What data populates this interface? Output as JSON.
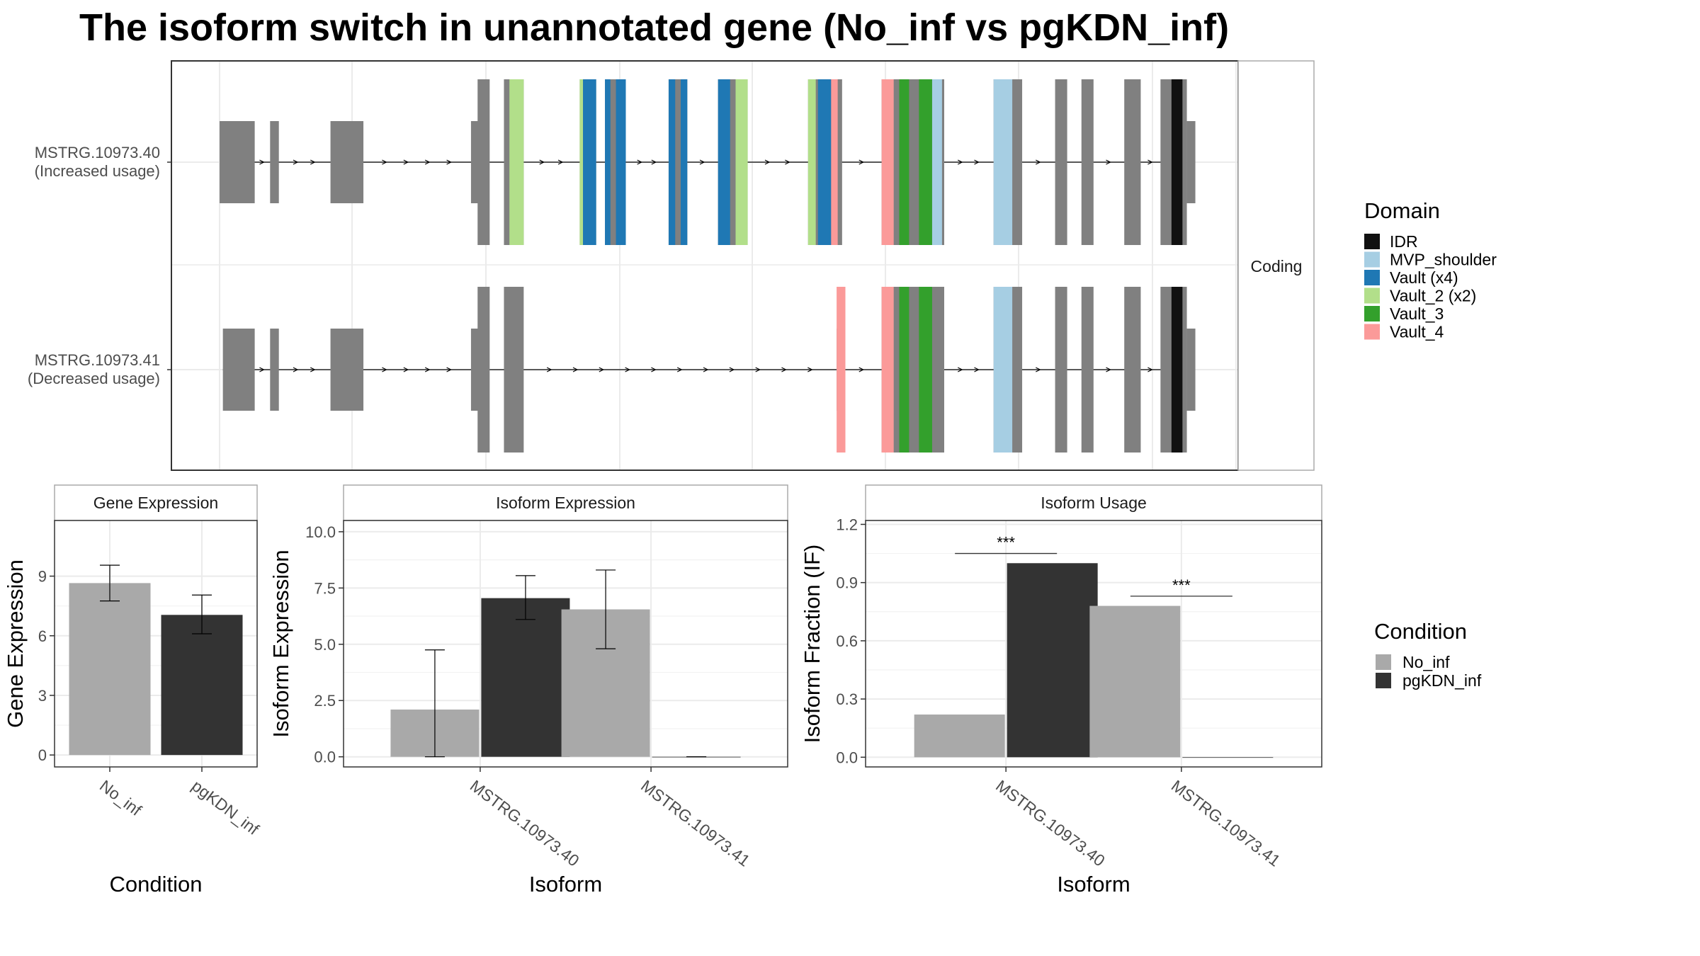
{
  "title": "The isoform switch in unannotated gene (No_inf vs pgKDN_inf)",
  "colors": {
    "No_inf": "#A9A9A9",
    "pgKDN_inf": "#333333",
    "exon": "#808080",
    "IDR": "#111111",
    "MVP_shoulder": "#A6CEE3",
    "Vault (x4)": "#1F78B4",
    "Vault_2 (x2)": "#B2DF8A",
    "Vault_3": "#33A02C",
    "Vault_4": "#FB9A99"
  },
  "chart_data": [
    {
      "type": "gene-structure",
      "facet_label": "Coding",
      "transcripts": [
        {
          "label": "MSTRG.10973.40\n(Increased usage)",
          "utr_exons": [
            [
              200,
              232
            ],
            [
              246,
              254
            ],
            [
              301,
              331
            ],
            [
              429,
              436
            ]
          ],
          "cds_exons": [
            [
              435,
              446
            ],
            [
              459,
              477
            ],
            [
              528,
              543
            ],
            [
              551,
              570
            ],
            [
              609,
              626
            ],
            [
              654,
              681
            ],
            [
              736,
              767
            ],
            [
              803,
              860
            ],
            [
              905,
              931
            ],
            [
              961,
              972
            ],
            [
              985,
              996
            ],
            [
              1024,
              1039
            ],
            [
              1057,
              1081
            ]
          ],
          "domains": [
            {
              "name": "Vault_2 (x2)",
              "range": [
                464,
                477
              ]
            },
            {
              "name": "Vault_2 (x2)",
              "range": [
                528,
                531
              ]
            },
            {
              "name": "Vault (x4)",
              "range": [
                531,
                543
              ]
            },
            {
              "name": "Vault (x4)",
              "range": [
                551,
                556
              ]
            },
            {
              "name": "Vault (x4)",
              "range": [
                561,
                570
              ]
            },
            {
              "name": "Vault (x4)",
              "range": [
                609,
                615
              ]
            },
            {
              "name": "Vault (x4)",
              "range": [
                620,
                626
              ]
            },
            {
              "name": "Vault (x4)",
              "range": [
                654,
                665
              ]
            },
            {
              "name": "Vault_2 (x2)",
              "range": [
                670,
                681
              ]
            },
            {
              "name": "Vault_2 (x2)",
              "range": [
                736,
                743
              ]
            },
            {
              "name": "Vault (x4)",
              "range": [
                745,
                757
              ]
            },
            {
              "name": "Vault_4",
              "range": [
                757,
                763
              ]
            },
            {
              "name": "Vault_4",
              "range": [
                803,
                814
              ]
            },
            {
              "name": "Vault_3",
              "range": [
                819,
                828
              ]
            },
            {
              "name": "Vault_3",
              "range": [
                837,
                849
              ]
            },
            {
              "name": "MVP_shoulder",
              "range": [
                849,
                858
              ]
            },
            {
              "name": "MVP_shoulder",
              "range": [
                905,
                922
              ]
            },
            {
              "name": "IDR",
              "range": [
                1067,
                1077
              ]
            }
          ]
        },
        {
          "label": "MSTRG.10973.41\n(Decreased usage)",
          "utr_exons": [
            [
              203,
              232
            ],
            [
              246,
              254
            ],
            [
              301,
              331
            ],
            [
              429,
              436
            ],
            [
              762,
              767
            ]
          ],
          "cds_exons": [
            [
              435,
              446
            ],
            [
              459,
              477
            ],
            [
              803,
              860
            ],
            [
              905,
              931
            ],
            [
              961,
              972
            ],
            [
              985,
              996
            ],
            [
              1024,
              1039
            ],
            [
              1057,
              1081
            ]
          ],
          "domains": [
            {
              "name": "Vault_4",
              "range": [
                762,
                770
              ]
            },
            {
              "name": "Vault_4",
              "range": [
                803,
                814
              ]
            },
            {
              "name": "Vault_3",
              "range": [
                819,
                828
              ]
            },
            {
              "name": "Vault_3",
              "range": [
                837,
                849
              ]
            },
            {
              "name": "MVP_shoulder",
              "range": [
                905,
                922
              ]
            },
            {
              "name": "IDR",
              "range": [
                1067,
                1077
              ]
            }
          ]
        }
      ],
      "legend": {
        "title": "Domain",
        "items": [
          "IDR",
          "MVP_shoulder",
          "Vault (x4)",
          "Vault_2 (x2)",
          "Vault_3",
          "Vault_4"
        ]
      }
    },
    {
      "type": "bar",
      "title": "Gene Expression",
      "xlabel": "Condition",
      "ylabel": "Gene Expression",
      "categories": [
        "No_inf",
        "pgKDN_inf"
      ],
      "values": [
        8.65,
        7.05
      ],
      "errors": [
        [
          7.75,
          9.55
        ],
        [
          6.1,
          8.05
        ]
      ],
      "ylim": [
        -0.6,
        11.8
      ],
      "yticks": [
        0,
        3,
        6,
        9
      ]
    },
    {
      "type": "bar",
      "title": "Isoform Expression",
      "xlabel": "Isoform",
      "ylabel": "Isoform Expression",
      "categories": [
        "MSTRG.10973.40",
        "MSTRG.10973.41"
      ],
      "series": [
        {
          "name": "No_inf",
          "values": [
            2.1,
            6.55
          ],
          "errors": [
            [
              0.0,
              4.75
            ],
            [
              4.8,
              8.3
            ]
          ]
        },
        {
          "name": "pgKDN_inf",
          "values": [
            7.05,
            0.0
          ],
          "errors": [
            [
              6.1,
              8.05
            ],
            [
              0.0,
              0.0
            ]
          ]
        }
      ],
      "ylim": [
        -0.45,
        10.5
      ],
      "yticks": [
        "0.0",
        "2.5",
        "5.0",
        "7.5",
        "10.0"
      ]
    },
    {
      "type": "bar",
      "title": "Isoform Usage",
      "xlabel": "Isoform",
      "ylabel": "Isoform Fraction (IF)",
      "categories": [
        "MSTRG.10973.40",
        "MSTRG.10973.41"
      ],
      "series": [
        {
          "name": "No_inf",
          "values": [
            0.22,
            0.78
          ]
        },
        {
          "name": "pgKDN_inf",
          "values": [
            1.0,
            0.0
          ]
        }
      ],
      "significance": [
        {
          "label": "***",
          "y": 1.05
        },
        {
          "label": "***",
          "y": 0.83
        }
      ],
      "ylim": [
        -0.05,
        1.22
      ],
      "yticks": [
        "0.0",
        "0.3",
        "0.6",
        "0.9",
        "1.2"
      ]
    }
  ],
  "condition_legend": {
    "title": "Condition",
    "items": [
      "No_inf",
      "pgKDN_inf"
    ]
  }
}
